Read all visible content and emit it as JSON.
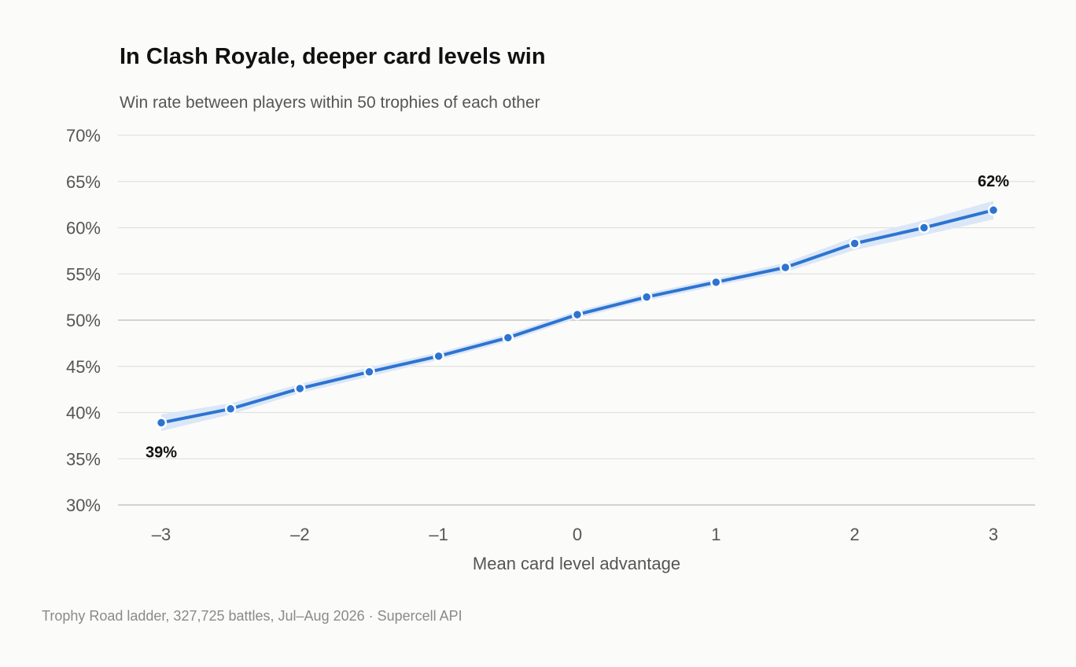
{
  "chart_data": {
    "type": "line",
    "title": "In Clash Royale, deeper card levels win",
    "subtitle": "Win rate between players within 50 trophies of each other",
    "xlabel": "Mean card level advantage",
    "ylabel": "",
    "xlim": [
      -3,
      3
    ],
    "ylim": [
      30,
      70
    ],
    "x_ticks": [
      -3,
      -2,
      -1,
      0,
      1,
      2,
      3
    ],
    "x_tick_labels": [
      "–3",
      "–2",
      "–1",
      "0",
      "1",
      "2",
      "3"
    ],
    "y_ticks": [
      30,
      35,
      40,
      45,
      50,
      55,
      60,
      65,
      70
    ],
    "y_tick_labels": [
      "30%",
      "35%",
      "40%",
      "45%",
      "50%",
      "55%",
      "60%",
      "65%",
      "70%"
    ],
    "grid": true,
    "series": [
      {
        "color": "#2d74d1",
        "band_color": "#dbe7f7",
        "x": [
          -3,
          -2.5,
          -2,
          -1.5,
          -1,
          -0.5,
          0,
          0.5,
          1,
          1.5,
          2,
          2.5,
          3
        ],
        "y": [
          38.9,
          40.4,
          42.6,
          44.4,
          46.1,
          48.1,
          50.6,
          52.5,
          54.1,
          55.7,
          58.3,
          60.0,
          61.9
        ],
        "y_low": [
          38.0,
          39.8,
          42.1,
          43.9,
          45.7,
          47.7,
          50.2,
          52.1,
          53.7,
          55.2,
          57.6,
          59.2,
          60.9
        ],
        "y_high": [
          39.8,
          41.0,
          43.1,
          44.9,
          46.5,
          48.5,
          51.0,
          52.9,
          54.5,
          56.2,
          59.0,
          60.8,
          62.9
        ]
      }
    ],
    "annotations": [
      {
        "x": -3,
        "y": 38.9,
        "text": "39%",
        "position": "below"
      },
      {
        "x": 3,
        "y": 61.9,
        "text": "62%",
        "position": "above"
      }
    ]
  },
  "footer": "Trophy Road ladder, 327,725 battles, Jul–Aug 2026 · Supercell API"
}
